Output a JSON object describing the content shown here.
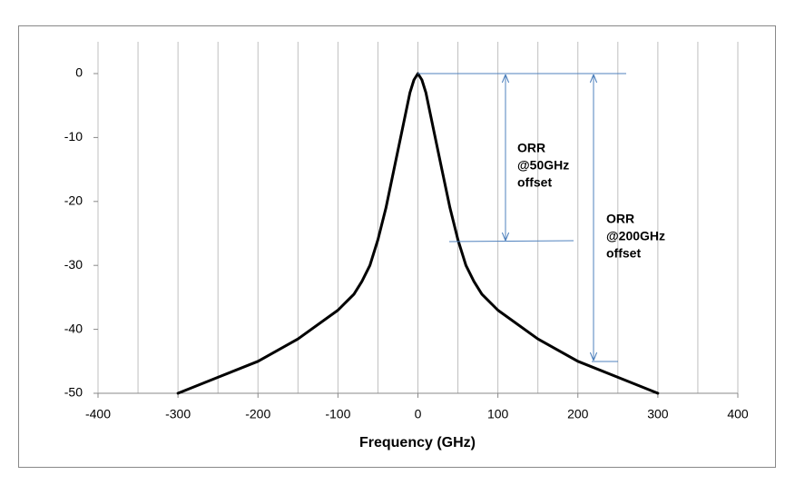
{
  "chart_data": {
    "type": "line",
    "x_label": "Frequency  (GHz)",
    "x": [
      -300,
      -250,
      -200,
      -150,
      -100,
      -80,
      -70,
      -60,
      -50,
      -40,
      -30,
      -20,
      -10,
      -5,
      0,
      5,
      10,
      20,
      30,
      40,
      50,
      60,
      70,
      80,
      100,
      150,
      200,
      250,
      300
    ],
    "values": [
      -50,
      -47.5,
      -45,
      -41.5,
      -37,
      -34.5,
      -32.5,
      -30,
      -26,
      -21,
      -15,
      -9,
      -3,
      -1,
      0,
      -1,
      -3,
      -9,
      -15,
      -21,
      -26,
      -30,
      -32.5,
      -34.5,
      -37,
      -41.5,
      -45,
      -47.5,
      -50
    ],
    "color": "#000000",
    "xlim": [
      -400,
      400
    ],
    "xticks": [
      -400,
      -300,
      -200,
      -100,
      0,
      100,
      200,
      300,
      400
    ],
    "x_minor_grid": [
      -350,
      -250,
      -150,
      -50,
      50,
      150,
      250,
      350
    ],
    "ylim": [
      -50,
      0
    ],
    "yticks": [
      0,
      -10,
      -20,
      -30,
      -40,
      -50
    ],
    "grid": "x",
    "annotations": [
      [
        "ORR",
        "@50GHz",
        "offset"
      ],
      [
        "ORR",
        "@200GHz",
        "offset"
      ]
    ]
  }
}
